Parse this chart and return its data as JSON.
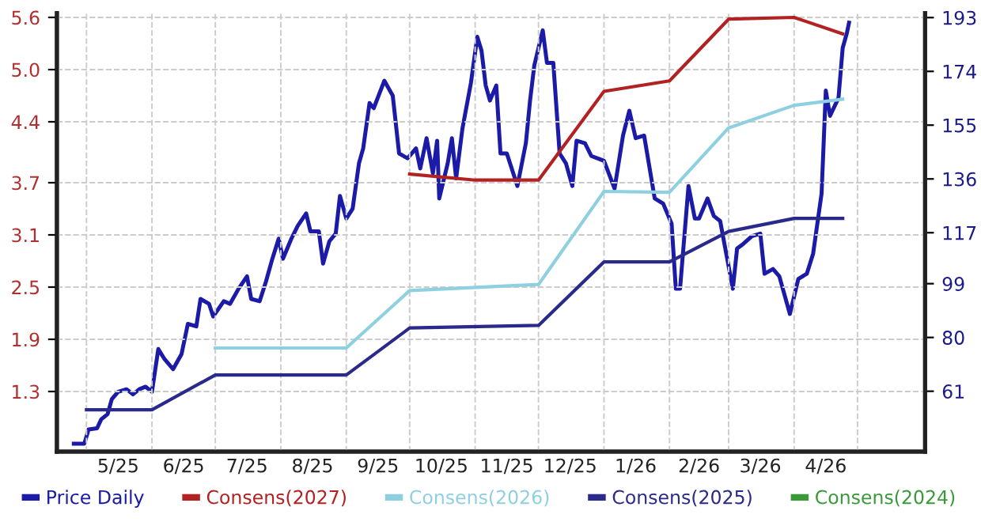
{
  "chart_data": {
    "type": "line",
    "xlim": [
      "2025-04-17",
      "2026-06-02"
    ],
    "xticks": [
      {
        "value": "2025-05-01",
        "label": null
      },
      {
        "value": "2025-05-16",
        "label": "5/25"
      },
      {
        "value": "2025-06-01",
        "label": null
      },
      {
        "value": "2025-06-16",
        "label": "6/25"
      },
      {
        "value": "2025-07-01",
        "label": null
      },
      {
        "value": "2025-07-16",
        "label": "7/25"
      },
      {
        "value": "2025-08-01",
        "label": null
      },
      {
        "value": "2025-08-16",
        "label": "8/25"
      },
      {
        "value": "2025-09-01",
        "label": null
      },
      {
        "value": "2025-09-16",
        "label": "9/25"
      },
      {
        "value": "2025-10-01",
        "label": null
      },
      {
        "value": "2025-10-16",
        "label": "10/25"
      },
      {
        "value": "2025-11-01",
        "label": null
      },
      {
        "value": "2025-11-16",
        "label": "11/25"
      },
      {
        "value": "2025-12-01",
        "label": null
      },
      {
        "value": "2025-12-16",
        "label": "12/25"
      },
      {
        "value": "2026-01-01",
        "label": null
      },
      {
        "value": "2026-01-16",
        "label": "1/26"
      },
      {
        "value": "2026-02-01",
        "label": null
      },
      {
        "value": "2026-02-15",
        "label": "2/26"
      },
      {
        "value": "2026-03-01",
        "label": null
      },
      {
        "value": "2026-03-16",
        "label": "3/26"
      },
      {
        "value": "2026-04-01",
        "label": null
      },
      {
        "value": "2026-04-16",
        "label": "4/26"
      },
      {
        "value": "2026-05-01",
        "label": null
      }
    ],
    "ylim": [
      0.61,
      5.65
    ],
    "yticks": [
      1.3,
      1.9,
      2.5,
      3.1,
      3.7,
      4.4,
      {
        "value": 5.0,
        "label": "5.0"
      },
      5.6
    ],
    "y2lim": [
      39.7,
      194.6
    ],
    "y2ticks": [
      61,
      80,
      99,
      117,
      136,
      155,
      174,
      193
    ],
    "grid": true,
    "legend": "bottom",
    "marker": "none",
    "line_style": "solid",
    "series": [
      {
        "name": "Price Daily",
        "color": "#1b1ba8",
        "axis": "y2",
        "x": [
          "2025-04-25",
          "2025-04-30",
          "2025-05-02",
          "2025-05-06",
          "2025-05-08",
          "2025-05-11",
          "2025-05-13",
          "2025-05-16",
          "2025-05-20",
          "2025-05-23",
          "2025-05-26",
          "2025-05-29",
          "2025-06-01",
          "2025-06-04",
          "2025-06-07",
          "2025-06-11",
          "2025-06-15",
          "2025-06-18",
          "2025-06-22",
          "2025-06-24",
          "2025-06-28",
          "2025-06-30",
          "2025-07-05",
          "2025-07-08",
          "2025-07-12",
          "2025-07-16",
          "2025-07-18",
          "2025-07-22",
          "2025-07-25",
          "2025-07-28",
          "2025-07-31",
          "2025-08-02",
          "2025-08-06",
          "2025-08-09",
          "2025-08-13",
          "2025-08-15",
          "2025-08-19",
          "2025-08-21",
          "2025-08-24",
          "2025-08-27",
          "2025-08-29",
          "2025-09-01",
          "2025-09-04",
          "2025-09-07",
          "2025-09-09",
          "2025-09-12",
          "2025-09-14",
          "2025-09-19",
          "2025-09-23",
          "2025-09-26",
          "2025-09-30",
          "2025-10-04",
          "2025-10-06",
          "2025-10-09",
          "2025-10-12",
          "2025-10-14",
          "2025-10-15",
          "2025-10-19",
          "2025-10-21",
          "2025-10-23",
          "2025-10-26",
          "2025-10-30",
          "2025-11-02",
          "2025-11-04",
          "2025-11-06",
          "2025-11-08",
          "2025-11-11",
          "2025-11-13",
          "2025-11-16",
          "2025-11-21",
          "2025-11-25",
          "2025-11-27",
          "2025-11-29",
          "2025-12-03",
          "2025-12-05",
          "2025-12-08",
          "2025-12-11",
          "2025-12-14",
          "2025-12-17",
          "2025-12-19",
          "2025-12-23",
          "2025-12-26",
          "2026-01-01",
          "2026-01-06",
          "2026-01-10",
          "2026-01-13",
          "2026-01-16",
          "2026-01-20",
          "2026-01-25",
          "2026-01-29",
          "2026-02-02",
          "2026-02-04",
          "2026-02-06",
          "2026-02-10",
          "2026-02-13",
          "2026-02-15",
          "2026-02-19",
          "2026-02-22",
          "2026-02-25",
          "2026-02-27",
          "2026-03-03",
          "2026-03-05",
          "2026-03-08",
          "2026-03-12",
          "2026-03-16",
          "2026-03-18",
          "2026-03-22",
          "2026-03-25",
          "2026-03-30",
          "2026-04-03",
          "2026-04-07",
          "2026-04-10",
          "2026-04-14",
          "2026-04-16",
          "2026-04-18",
          "2026-04-22",
          "2026-04-24",
          "2026-04-26",
          "2026-04-27"
        ],
        "values": [
          42.5,
          42.5,
          47.5,
          47.9,
          51.1,
          52.9,
          58.2,
          60.8,
          61.7,
          59.9,
          61.7,
          62.6,
          60.8,
          75.9,
          72.3,
          68.8,
          74.1,
          84.8,
          83.9,
          93.6,
          91.9,
          87.4,
          92.8,
          91.9,
          97.2,
          101.6,
          93.6,
          92.8,
          99.8,
          107.8,
          114.9,
          107.8,
          114.9,
          119.4,
          123.8,
          117.5,
          117.5,
          106.1,
          114.0,
          116.7,
          130.0,
          122.0,
          125.5,
          141.5,
          146.8,
          162.8,
          161.0,
          170.7,
          165.4,
          145.0,
          143.3,
          146.8,
          139.7,
          150.4,
          138.0,
          149.5,
          129.1,
          141.5,
          150.4,
          136.2,
          153.9,
          169.9,
          186.2,
          181.4,
          169.0,
          163.7,
          169.0,
          145.0,
          145.0,
          133.5,
          148.6,
          163.7,
          176.1,
          188.5,
          177.0,
          177.0,
          145.0,
          141.5,
          133.5,
          149.5,
          148.6,
          144.1,
          142.4,
          132.6,
          151.3,
          160.1,
          150.4,
          151.3,
          129.1,
          127.3,
          120.2,
          97.2,
          97.2,
          133.5,
          122.0,
          122.0,
          129.1,
          122.9,
          121.1,
          113.1,
          97.2,
          111.4,
          113.1,
          115.8,
          116.7,
          102.5,
          104.2,
          101.6,
          88.3,
          100.7,
          102.5,
          109.6,
          130.8,
          167.2,
          158.3,
          164.6,
          182.3,
          187.6,
          191.2
        ]
      },
      {
        "name": "Consens(2027)",
        "color": "#b22222",
        "x": [
          "2025-10-01",
          "2025-11-01",
          "2025-12-01",
          "2026-01-01",
          "2026-02-01",
          "2026-03-01",
          "2026-04-01",
          "2026-04-24"
        ],
        "values": [
          3.8,
          3.73,
          3.73,
          4.75,
          4.87,
          5.58,
          5.6,
          5.41
        ]
      },
      {
        "name": "Consens(2026)",
        "color": "#8fd0e0",
        "x": [
          "2025-07-01",
          "2025-09-01",
          "2025-10-01",
          "2025-12-01",
          "2026-01-01",
          "2026-02-01",
          "2026-03-01",
          "2026-04-01",
          "2026-04-24"
        ],
        "values": [
          1.8,
          1.8,
          2.46,
          2.53,
          3.6,
          3.59,
          4.33,
          4.59,
          4.66
        ]
      },
      {
        "name": "Consens(2025)",
        "color": "#2a2a8a",
        "x": [
          "2025-05-01",
          "2025-06-01",
          "2025-07-01",
          "2025-09-01",
          "2025-10-01",
          "2025-12-01",
          "2026-01-01",
          "2026-02-01",
          "2026-03-01",
          "2026-04-01",
          "2026-04-24"
        ],
        "values": [
          1.09,
          1.09,
          1.49,
          1.49,
          2.03,
          2.06,
          2.79,
          2.79,
          3.14,
          3.29,
          3.29
        ]
      },
      {
        "name": "Consens(2024)",
        "color": "#3a9a3a"
      }
    ]
  }
}
